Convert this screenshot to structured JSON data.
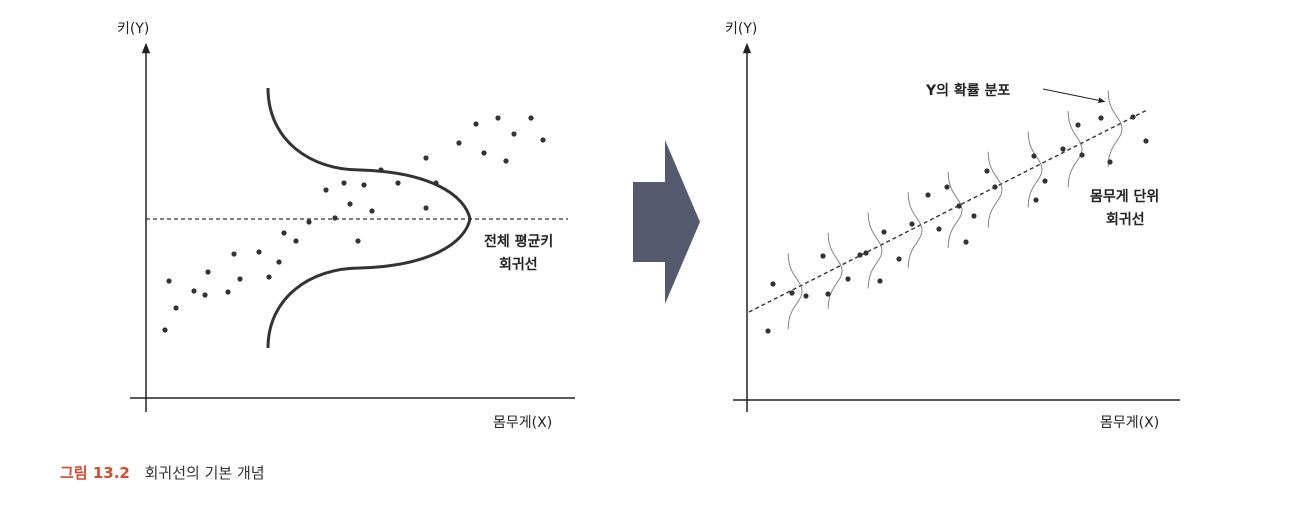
{
  "left_panel": {
    "y_axis_label": "키(Y)",
    "x_axis_label": "몸무게(X)",
    "line_label_1": "전체 평균키",
    "line_label_2": "회귀선"
  },
  "right_panel": {
    "y_axis_label": "키(Y)",
    "x_axis_label": "몸무게(X)",
    "distribution_label": "Y의 확률 분포",
    "line_label_1": "몸무게 단위",
    "line_label_2": "회귀선"
  },
  "caption": {
    "number": "그림 13.2",
    "text": "회귀선의 기본 개념"
  },
  "colors": {
    "axis": "#222222",
    "point": "#333333",
    "curve": "#333333",
    "arrow": "#555a6e",
    "caption_number": "#d9482b"
  }
}
